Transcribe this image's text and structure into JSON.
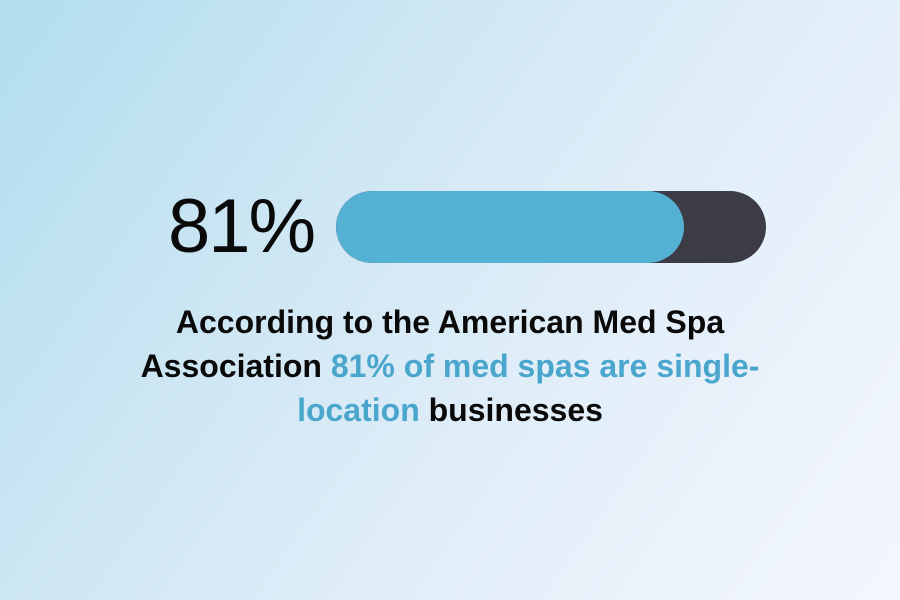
{
  "stat": {
    "percent_label": "81%",
    "percent_value": 81,
    "fill_color": "#55b1d3",
    "track_color": "#3b3c46"
  },
  "caption": {
    "line1": "According to the American Med Spa",
    "line2_a": "Association ",
    "line2_b": "81% of med spas are single-",
    "line3_a": "location",
    "line3_b": " businesses",
    "highlight_color": "#4aa6cc",
    "text_color": "#0a0a0a"
  },
  "background": {
    "gradient_start": "#b1ddee",
    "gradient_end": "#f4f6fe"
  }
}
